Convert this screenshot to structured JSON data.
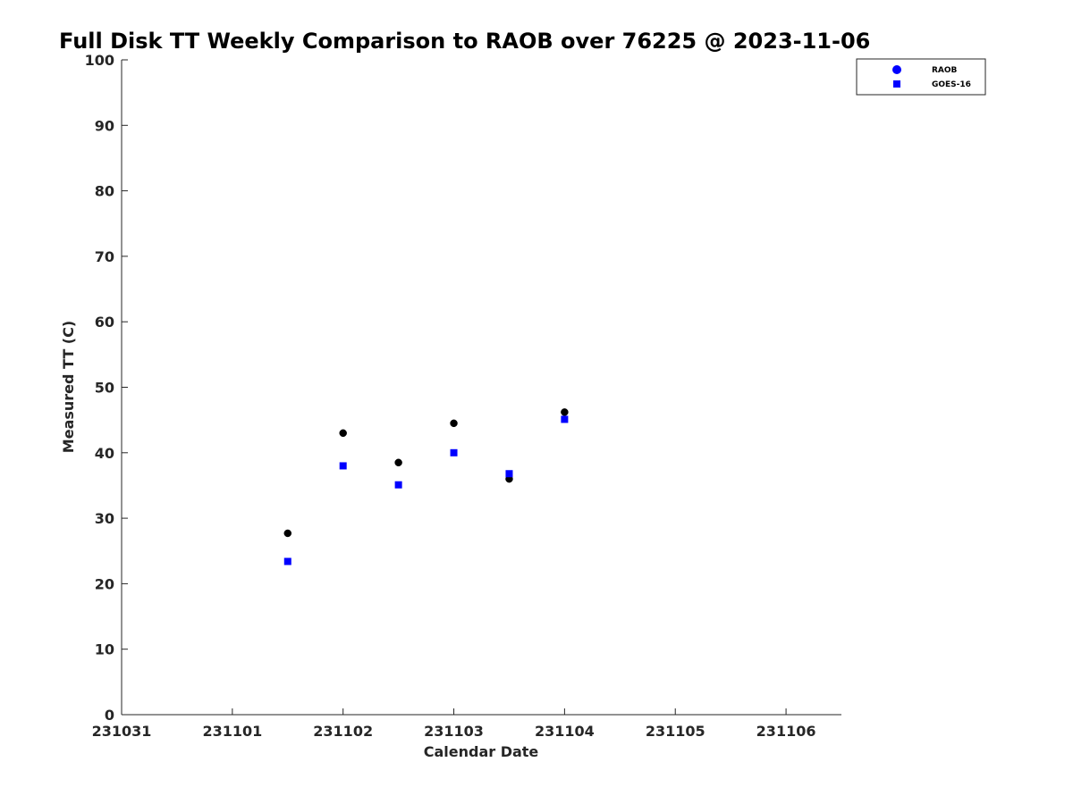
{
  "chart_data": {
    "type": "scatter",
    "title": "Full Disk TT Weekly Comparison to RAOB over 76225 @ 2023-11-06",
    "xlabel": "Calendar Date",
    "ylabel": "Measured TT (C)",
    "x_ticks": [
      "231031",
      "231101",
      "231102",
      "231103",
      "231104",
      "231105",
      "231106"
    ],
    "x_tick_days": [
      0,
      1,
      2,
      3,
      4,
      5,
      6
    ],
    "xlim_days": [
      0,
      6.5
    ],
    "ylim": [
      0,
      100
    ],
    "y_ticks": [
      "0",
      "10",
      "20",
      "30",
      "40",
      "50",
      "60",
      "70",
      "80",
      "90",
      "100"
    ],
    "legend_position": "top-right",
    "series": [
      {
        "name": "RAOB",
        "marker": "circle",
        "color": "#000000",
        "legend_color": "#0000ff",
        "x_days": [
          1.5,
          2.0,
          2.5,
          3.0,
          3.5,
          4.0
        ],
        "values": [
          27.7,
          43.0,
          38.5,
          44.5,
          36.0,
          46.2
        ]
      },
      {
        "name": "GOES-16",
        "marker": "square",
        "color": "#0000ff",
        "legend_color": "#0000ff",
        "x_days": [
          1.5,
          2.0,
          2.5,
          3.0,
          3.5,
          4.0
        ],
        "values": [
          23.4,
          38.0,
          35.1,
          40.0,
          36.8,
          45.1
        ]
      }
    ]
  }
}
